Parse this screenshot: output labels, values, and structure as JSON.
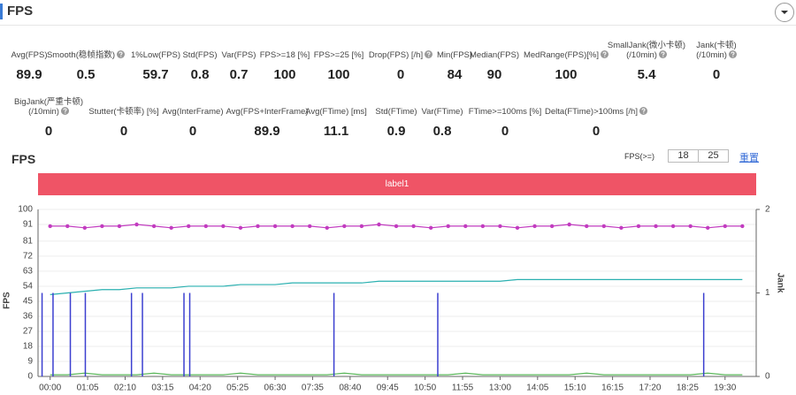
{
  "header": {
    "title": "FPS"
  },
  "metrics": [
    {
      "label": "Avg(FPS)",
      "value": 89.9
    },
    {
      "label": "Smooth(稳帧指数)",
      "value": 0.5,
      "help": true
    },
    {
      "label": "1%Low(FPS)",
      "value": 59.7
    },
    {
      "label": "Std(FPS)",
      "value": 0.8
    },
    {
      "label": "Var(FPS)",
      "value": 0.7
    },
    {
      "label": "FPS>=18 [%]",
      "value": 100
    },
    {
      "label": "FPS>=25 [%]",
      "value": 100
    },
    {
      "label": "Drop(FPS) [/h]",
      "value": 0,
      "help": true
    },
    {
      "label": "Min(FPS)",
      "value": 84
    },
    {
      "label": "Median(FPS)",
      "value": 90
    },
    {
      "label": "MedRange(FPS)[%]",
      "value": 100,
      "help": true
    },
    {
      "label": "SmallJank(微小卡顿)\n(/10min)",
      "value": 5.4,
      "help": true
    },
    {
      "label": "Jank(卡顿)\n(/10min)",
      "value": 0,
      "help": true
    },
    {
      "label": "BigJank(严重卡顿)\n(/10min)",
      "value": 0,
      "help": true
    },
    {
      "label": "Stutter(卡顿率) [%]",
      "value": 0
    },
    {
      "label": "Avg(InterFrame)",
      "value": 0
    },
    {
      "label": "Avg(FPS+InterFrame)",
      "value": 89.9
    },
    {
      "label": "Avg(FTime) [ms]",
      "value": 11.1
    },
    {
      "label": "Std(FTime)",
      "value": 0.9
    },
    {
      "label": "Var(FTime)",
      "value": 0.8
    },
    {
      "label": "FTime>=100ms [%]",
      "value": 0
    },
    {
      "label": "Delta(FTime)>100ms [/h]",
      "value": 0,
      "help": true
    }
  ],
  "section": {
    "title": "FPS",
    "threshold_label": "FPS(>=)",
    "thresholds": [
      18,
      25
    ],
    "reset": "重置",
    "label_bar": "label1"
  },
  "chart_data": {
    "type": "line",
    "y_label": "FPS",
    "y2_label": "Jank",
    "x": [
      0,
      30,
      60,
      90,
      120,
      150,
      180,
      210,
      240,
      270,
      300,
      330,
      360,
      390,
      420,
      450,
      480,
      510,
      540,
      570,
      600,
      630,
      660,
      690,
      720,
      750,
      780,
      810,
      840,
      870,
      900,
      930,
      960,
      990,
      1020,
      1050,
      1080,
      1110,
      1140,
      1170,
      1200
    ],
    "xlim": [
      -21,
      1224
    ],
    "xticks": [
      {
        "value": 0,
        "label": "00:00"
      },
      {
        "value": 65,
        "label": "01:05"
      },
      {
        "value": 130,
        "label": "02:10"
      },
      {
        "value": 195,
        "label": "03:15"
      },
      {
        "value": 260,
        "label": "04:20"
      },
      {
        "value": 325,
        "label": "05:25"
      },
      {
        "value": 390,
        "label": "06:30"
      },
      {
        "value": 455,
        "label": "07:35"
      },
      {
        "value": 520,
        "label": "08:40"
      },
      {
        "value": 585,
        "label": "09:45"
      },
      {
        "value": 650,
        "label": "10:50"
      },
      {
        "value": 715,
        "label": "11:55"
      },
      {
        "value": 780,
        "label": "13:00"
      },
      {
        "value": 845,
        "label": "14:05"
      },
      {
        "value": 910,
        "label": "15:10"
      },
      {
        "value": 975,
        "label": "16:15"
      },
      {
        "value": 1040,
        "label": "17:20"
      },
      {
        "value": 1105,
        "label": "18:25"
      },
      {
        "value": 1170,
        "label": "19:30"
      }
    ],
    "ylim": [
      0,
      100
    ],
    "yticks": [
      0,
      9,
      18,
      27,
      36,
      45,
      54,
      63,
      72,
      81,
      91,
      100
    ],
    "y2lim": [
      0,
      2
    ],
    "y2ticks": [
      0,
      1,
      2
    ],
    "grid": true,
    "series": [
      {
        "color": "#c23cc0",
        "markers": true,
        "values": [
          90,
          90,
          89,
          90,
          90,
          91,
          90,
          89,
          90,
          90,
          90,
          89,
          90,
          90,
          90,
          90,
          89,
          90,
          90,
          91,
          90,
          90,
          89,
          90,
          90,
          90,
          90,
          89,
          90,
          90,
          91,
          90,
          90,
          89,
          90,
          90,
          90,
          90,
          89,
          90,
          90
        ]
      },
      {
        "color": "#2ab0b0",
        "values": [
          49,
          50,
          51,
          52,
          52,
          53,
          53,
          53,
          54,
          54,
          54,
          55,
          55,
          55,
          56,
          56,
          56,
          56,
          56,
          57,
          57,
          57,
          57,
          57,
          57,
          57,
          57,
          58,
          58,
          58,
          58,
          58,
          58,
          58,
          58,
          58,
          58,
          58,
          58,
          58,
          58
        ]
      },
      {
        "color": "#5cb85c",
        "values": [
          1,
          1,
          2,
          1,
          1,
          1,
          2,
          1,
          1,
          1,
          1,
          2,
          1,
          1,
          1,
          1,
          1,
          2,
          1,
          1,
          1,
          1,
          1,
          1,
          2,
          1,
          1,
          1,
          1,
          1,
          1,
          2,
          1,
          1,
          1,
          1,
          1,
          1,
          2,
          1,
          1
        ]
      },
      {
        "color": "#3b3fd0",
        "type": "spike",
        "axis": "y2",
        "x": [
          -14,
          5,
          35,
          61,
          141,
          160,
          232,
          242,
          492,
          672,
          1133
        ],
        "values": [
          1,
          1,
          1,
          1,
          1,
          1,
          1,
          1,
          1,
          1,
          1
        ]
      }
    ]
  }
}
